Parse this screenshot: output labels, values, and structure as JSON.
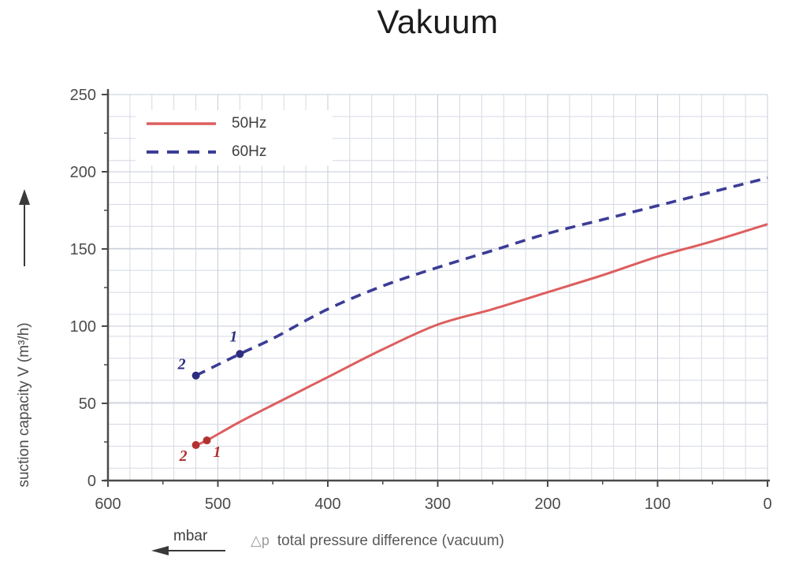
{
  "ui": {
    "legend": {
      "items": [
        {
          "label": "50Hz",
          "style": "solid"
        },
        {
          "label": "60Hz",
          "style": "dashed"
        }
      ]
    },
    "colors": {
      "series_50hz": "#dd5e5e",
      "series_50hz_marker": "#b23232",
      "series_60hz": "#3c3c96",
      "series_60hz_marker": "#2d2d7e",
      "grid": "#d6d9e4",
      "grid_major": "#c7cbda",
      "axis": "#4a4a4a",
      "tick_text": "#4c4c4c"
    }
  },
  "chart_data": {
    "type": "line",
    "title": "Vakuum",
    "ylabel": "suction capacity V (m³/h)",
    "xlabel_symbol": "△p",
    "xlabel": "total pressure difference (vacuum)",
    "x_unit": "mbar",
    "x_axis_reversed": true,
    "xlim": [
      600,
      0
    ],
    "ylim": [
      0,
      250
    ],
    "x_ticks": [
      600,
      500,
      400,
      300,
      200,
      100,
      0
    ],
    "y_ticks": [
      250,
      200,
      150,
      100,
      50,
      0
    ],
    "grid": true,
    "legend_position": "top-left",
    "series": [
      {
        "name": "50Hz",
        "style": "solid",
        "color": "#dd5e5e",
        "marker_color": "#b23232",
        "points": [
          [
            520,
            23
          ],
          [
            510,
            26
          ],
          [
            480,
            38
          ],
          [
            450,
            49
          ],
          [
            400,
            67
          ],
          [
            350,
            85
          ],
          [
            300,
            101
          ],
          [
            250,
            111
          ],
          [
            200,
            122
          ],
          [
            150,
            133
          ],
          [
            100,
            145
          ],
          [
            50,
            155
          ],
          [
            0,
            166
          ]
        ],
        "labeled_points": [
          {
            "x": 520,
            "y": 23,
            "label": "2",
            "dx": -16,
            "dy": 20
          },
          {
            "x": 510,
            "y": 26,
            "label": "1",
            "dx": 13,
            "dy": 21
          }
        ]
      },
      {
        "name": "60Hz",
        "style": "dashed",
        "color": "#3c3c96",
        "marker_color": "#2d2d7e",
        "points": [
          [
            520,
            68
          ],
          [
            480,
            82
          ],
          [
            450,
            92
          ],
          [
            400,
            111
          ],
          [
            350,
            126
          ],
          [
            300,
            138
          ],
          [
            250,
            149
          ],
          [
            200,
            160
          ],
          [
            150,
            169
          ],
          [
            100,
            178
          ],
          [
            50,
            187
          ],
          [
            0,
            196
          ]
        ],
        "labeled_points": [
          {
            "x": 520,
            "y": 68,
            "label": "2",
            "dx": -18,
            "dy": -8
          },
          {
            "x": 480,
            "y": 82,
            "label": "1",
            "dx": -8,
            "dy": -16
          }
        ]
      }
    ]
  }
}
